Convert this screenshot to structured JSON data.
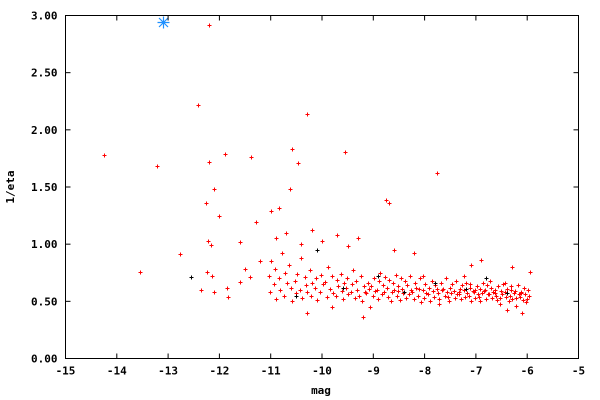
{
  "chart_data": {
    "type": "scatter",
    "xlabel": "mag",
    "ylabel": "1/eta",
    "xlim": [
      -15,
      -5
    ],
    "ylim": [
      0,
      3
    ],
    "xticks": [
      "-15",
      "-14",
      "-13",
      "-12",
      "-11",
      "-10",
      "-9",
      "-8",
      "-7",
      "-6",
      "-5"
    ],
    "yticks": [
      "0.00",
      "0.50",
      "1.00",
      "1.50",
      "2.00",
      "2.50",
      "3.00"
    ],
    "grid": false,
    "series": [
      {
        "color": "#ff0000",
        "marker": "plus",
        "points": [
          [
            -12.21,
            2.92
          ],
          [
            -12.41,
            2.22
          ],
          [
            -14.24,
            1.78
          ],
          [
            -13.21,
            1.68
          ],
          [
            -12.21,
            1.72
          ],
          [
            -11.9,
            1.79
          ],
          [
            -11.39,
            1.76
          ],
          [
            -10.3,
            2.14
          ],
          [
            -10.59,
            1.83
          ],
          [
            -10.63,
            1.48
          ],
          [
            -10.46,
            1.71
          ],
          [
            -9.56,
            1.81
          ],
          [
            -7.75,
            1.62
          ],
          [
            -13.54,
            0.76
          ],
          [
            -12.1,
            1.48
          ],
          [
            -12.27,
            1.36
          ],
          [
            -12.0,
            1.25
          ],
          [
            -12.23,
            1.03
          ],
          [
            -12.17,
            0.99
          ],
          [
            -12.76,
            0.91
          ],
          [
            -8.76,
            1.39
          ],
          [
            -8.7,
            1.36
          ],
          [
            -11.0,
            1.29
          ],
          [
            -10.83,
            1.32
          ],
          [
            -11.28,
            1.19
          ],
          [
            -11.59,
            1.02
          ],
          [
            -12.25,
            0.76
          ],
          [
            -12.15,
            0.72
          ],
          [
            -12.35,
            0.6
          ],
          [
            -12.1,
            0.58
          ],
          [
            -11.85,
            0.62
          ],
          [
            -11.83,
            0.54
          ],
          [
            -11.6,
            0.67
          ],
          [
            -11.5,
            0.78
          ],
          [
            -11.4,
            0.71
          ],
          [
            -11.2,
            0.85
          ],
          [
            -10.9,
            1.05
          ],
          [
            -10.7,
            1.1
          ],
          [
            -10.4,
            1.0
          ],
          [
            -10.2,
            1.12
          ],
          [
            -10.0,
            1.03
          ],
          [
            -9.7,
            1.08
          ],
          [
            -9.5,
            0.98
          ],
          [
            -9.3,
            1.05
          ],
          [
            -8.6,
            0.95
          ],
          [
            -8.2,
            0.92
          ],
          [
            -7.1,
            0.82
          ],
          [
            -6.9,
            0.86
          ],
          [
            -6.3,
            0.8
          ],
          [
            -5.95,
            0.76
          ],
          [
            -6.1,
            0.4
          ],
          [
            -6.4,
            0.42
          ],
          [
            -9.2,
            0.36
          ],
          [
            -9.8,
            0.45
          ],
          [
            -10.3,
            0.4
          ]
        ],
        "columns": [
          {
            "x": -11.0,
            "y": [
              0.72,
              0.58,
              0.85
            ]
          },
          {
            "x": -10.9,
            "y": [
              0.65,
              0.78,
              0.52
            ]
          },
          {
            "x": -10.8,
            "y": [
              0.7,
              0.6,
              0.92
            ]
          },
          {
            "x": -10.7,
            "y": [
              0.55,
              0.75,
              0.66
            ]
          },
          {
            "x": -10.6,
            "y": [
              0.82,
              0.62,
              0.5
            ]
          },
          {
            "x": -10.5,
            "y": [
              0.68,
              0.57,
              0.74
            ]
          },
          {
            "x": -10.4,
            "y": [
              0.6,
              0.88,
              0.53
            ]
          },
          {
            "x": -10.3,
            "y": [
              0.71,
              0.64,
              0.58
            ]
          },
          {
            "x": -10.2,
            "y": [
              0.77,
              0.55,
              0.66
            ]
          },
          {
            "x": -10.1,
            "y": [
              0.62,
              0.7,
              0.51
            ]
          },
          {
            "x": -10.0,
            "y": [
              0.58,
              0.73,
              0.65
            ]
          },
          {
            "x": -9.9,
            "y": [
              0.67,
              0.54,
              0.8
            ]
          },
          {
            "x": -9.8,
            "y": [
              0.61,
              0.72,
              0.57
            ]
          },
          {
            "x": -9.7,
            "y": [
              0.55,
              0.69,
              0.63
            ]
          },
          {
            "x": -9.6,
            "y": [
              0.74,
              0.59,
              0.52,
              0.66
            ]
          },
          {
            "x": -9.5,
            "y": [
              0.62,
              0.7,
              0.56
            ]
          },
          {
            "x": -9.4,
            "y": [
              0.58,
              0.65,
              0.77,
              0.53
            ]
          },
          {
            "x": -9.3,
            "y": [
              0.68,
              0.6,
              0.55
            ]
          },
          {
            "x": -9.2,
            "y": [
              0.72,
              0.5,
              0.63,
              0.58
            ]
          },
          {
            "x": -9.1,
            "y": [
              0.57,
              0.66,
              0.61,
              0.45
            ]
          },
          {
            "x": -9.0,
            "y": [
              0.63,
              0.55,
              0.7,
              0.59
            ]
          },
          {
            "x": -8.9,
            "y": [
              0.6,
              0.52,
              0.68,
              0.75
            ]
          },
          {
            "x": -8.8,
            "y": [
              0.56,
              0.64,
              0.58,
              0.71
            ]
          },
          {
            "x": -8.7,
            "y": [
              0.62,
              0.54,
              0.69,
              0.5
            ]
          },
          {
            "x": -8.6,
            "y": [
              0.58,
              0.66,
              0.6,
              0.73
            ]
          },
          {
            "x": -8.5,
            "y": [
              0.55,
              0.63,
              0.51,
              0.7,
              0.59
            ]
          },
          {
            "x": -8.4,
            "y": [
              0.61,
              0.57,
              0.68,
              0.53
            ]
          },
          {
            "x": -8.3,
            "y": [
              0.64,
              0.56,
              0.72,
              0.6
            ]
          },
          {
            "x": -8.2,
            "y": [
              0.58,
              0.52,
              0.66,
              0.62
            ]
          },
          {
            "x": -8.1,
            "y": [
              0.55,
              0.61,
              0.7,
              0.49
            ]
          },
          {
            "x": -8.0,
            "y": [
              0.6,
              0.53,
              0.65,
              0.57,
              0.72
            ]
          },
          {
            "x": -7.9,
            "y": [
              0.56,
              0.62,
              0.5,
              0.68
            ]
          },
          {
            "x": -7.8,
            "y": [
              0.59,
              0.54,
              0.64,
              0.61
            ]
          },
          {
            "x": -7.7,
            "y": [
              0.57,
              0.52,
              0.66,
              0.6,
              0.48
            ]
          },
          {
            "x": -7.6,
            "y": [
              0.61,
              0.55,
              0.7,
              0.58
            ]
          },
          {
            "x": -7.5,
            "y": [
              0.54,
              0.62,
              0.57,
              0.65,
              0.5
            ]
          },
          {
            "x": -7.4,
            "y": [
              0.59,
              0.53,
              0.68,
              0.56
            ]
          },
          {
            "x": -7.3,
            "y": [
              0.56,
              0.61,
              0.52,
              0.64,
              0.58
            ]
          },
          {
            "x": -7.2,
            "y": [
              0.6,
              0.54,
              0.66,
              0.57,
              0.72
            ]
          },
          {
            "x": -7.1,
            "y": [
              0.55,
              0.62,
              0.5,
              0.59,
              0.65
            ]
          },
          {
            "x": -7.0,
            "y": [
              0.58,
              0.53,
              0.63,
              0.56,
              0.6
            ]
          },
          {
            "x": -6.9,
            "y": [
              0.54,
              0.61,
              0.57,
              0.66,
              0.5
            ]
          },
          {
            "x": -6.8,
            "y": [
              0.59,
              0.52,
              0.64,
              0.56,
              0.6
            ]
          },
          {
            "x": -6.7,
            "y": [
              0.56,
              0.62,
              0.53,
              0.58,
              0.68
            ]
          },
          {
            "x": -6.6,
            "y": [
              0.6,
              0.55,
              0.51,
              0.63,
              0.57
            ]
          },
          {
            "x": -6.5,
            "y": [
              0.53,
              0.59,
              0.56,
              0.65,
              0.48
            ]
          },
          {
            "x": -6.4,
            "y": [
              0.58,
              0.54,
              0.61,
              0.5,
              0.66
            ]
          },
          {
            "x": -6.3,
            "y": [
              0.55,
              0.6,
              0.52,
              0.57,
              0.63
            ]
          },
          {
            "x": -6.2,
            "y": [
              0.59,
              0.53,
              0.64,
              0.56,
              0.46
            ]
          },
          {
            "x": -6.1,
            "y": [
              0.54,
              0.58,
              0.51,
              0.62,
              0.57
            ]
          },
          {
            "x": -6.0,
            "y": [
              0.56,
              0.52,
              0.6,
              0.55,
              0.49
            ]
          }
        ]
      },
      {
        "color": "#000000",
        "marker": "plus",
        "points": [
          [
            -12.55,
            0.71
          ],
          [
            -10.5,
            0.55
          ],
          [
            -10.1,
            0.95
          ],
          [
            -9.6,
            0.62
          ],
          [
            -8.9,
            0.72
          ],
          [
            -8.4,
            0.58
          ],
          [
            -7.8,
            0.66
          ],
          [
            -7.2,
            0.61
          ],
          [
            -6.8,
            0.7
          ],
          [
            -6.4,
            0.57
          ]
        ]
      },
      {
        "color": "#1e90ff",
        "marker": "star",
        "points": [
          [
            -13.09,
            2.94
          ]
        ]
      }
    ]
  }
}
